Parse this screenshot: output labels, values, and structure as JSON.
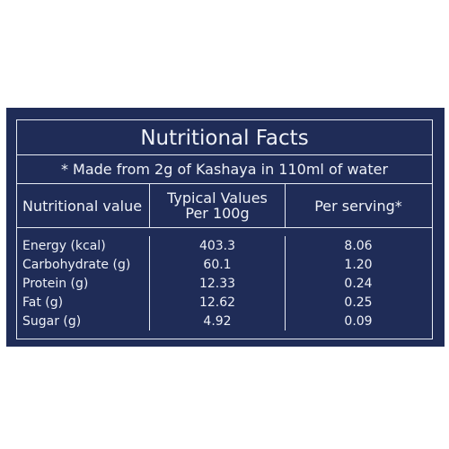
{
  "header": {
    "title": "Nutritional Facts",
    "note": "* Made from 2g of Kashaya in 110ml of water"
  },
  "table": {
    "columns": [
      "Nutritional value",
      "Typical Values Per 100g",
      "Per serving*"
    ],
    "rows": [
      [
        "Energy (kcal)",
        "403.3",
        "8.06"
      ],
      [
        "Carbohydrate (g)",
        "60.1",
        "1.20"
      ],
      [
        "Protein (g)",
        "12.33",
        "0.24"
      ],
      [
        "Fat (g)",
        "12.62",
        "0.25"
      ],
      [
        "Sugar (g)",
        "4.92",
        "0.09"
      ]
    ]
  }
}
